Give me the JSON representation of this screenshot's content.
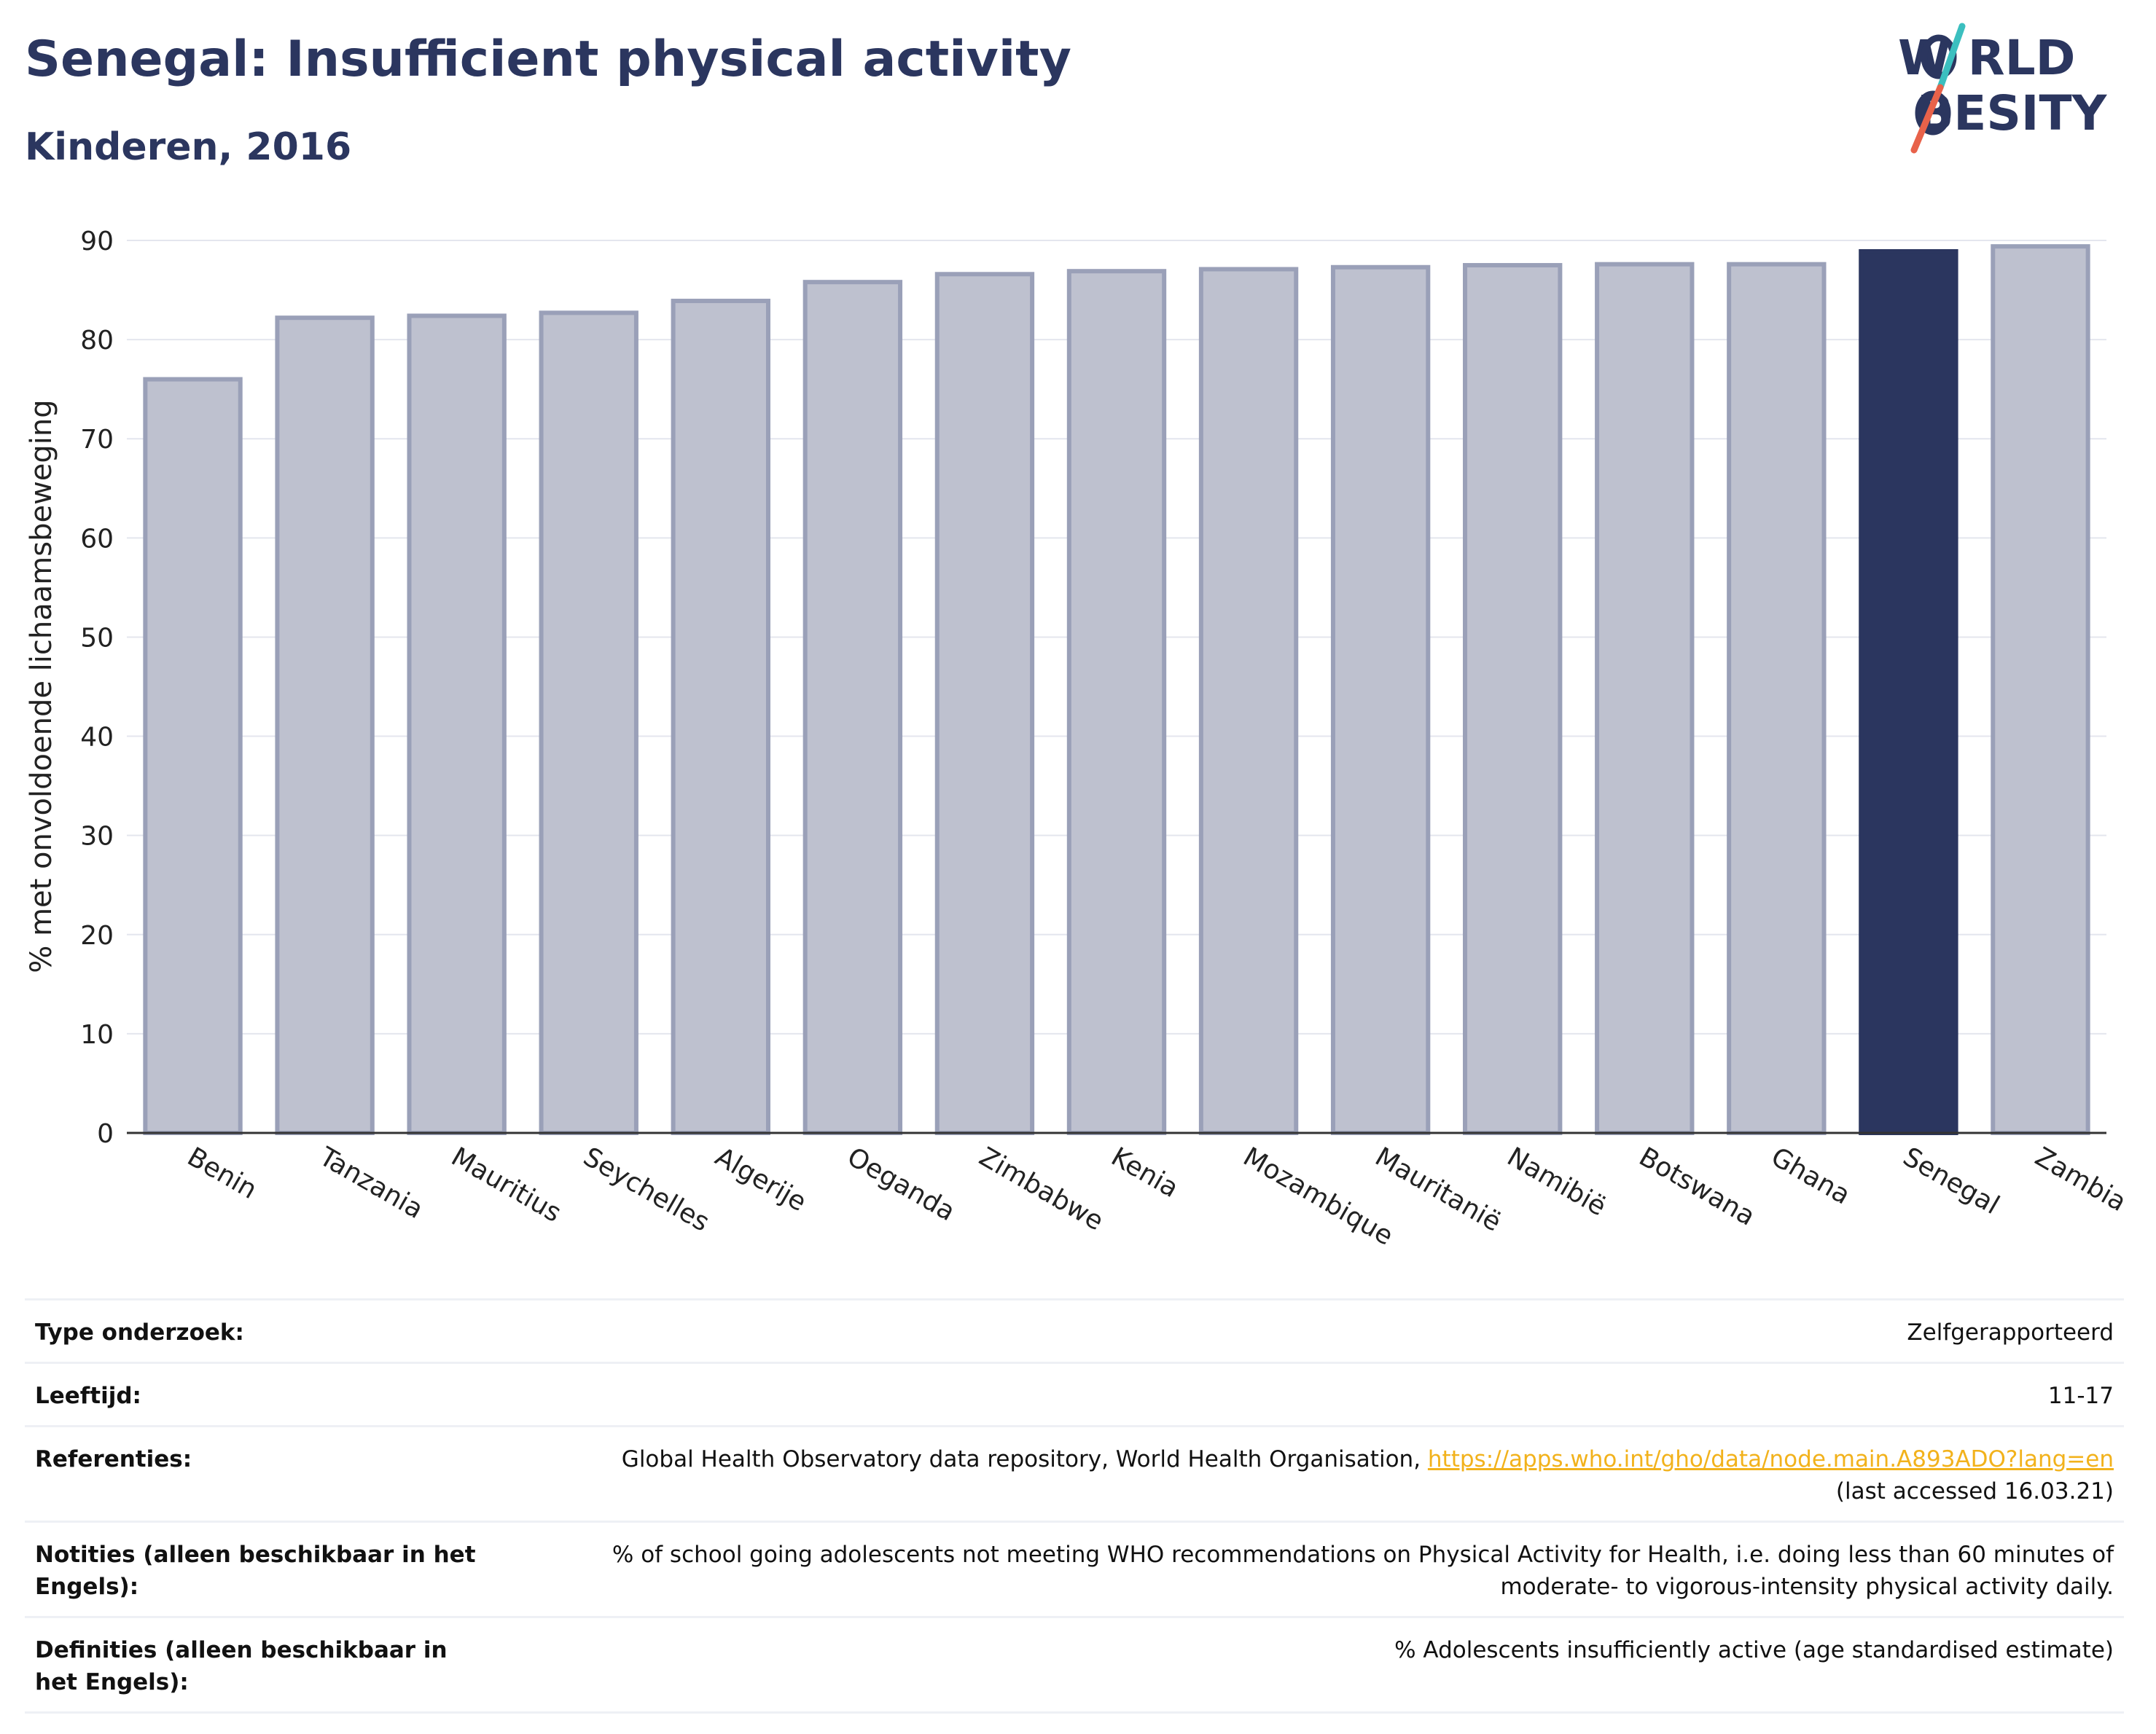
{
  "header": {
    "title": "Senegal: Insufficient physical activity",
    "subtitle": "Kinderen, 2016"
  },
  "logo": {
    "line1": "W RLD",
    "line2": "BESITY",
    "colors": {
      "text": "#2b365f",
      "slash_top": "#3bbfbf",
      "slash_bottom": "#e8624a"
    }
  },
  "colors": {
    "bar_fill": "#bec1cf",
    "bar_stroke": "#9aa0b8",
    "highlight": "#2b365f",
    "grid": "#e4e6ee",
    "axis": "#333333"
  },
  "chart_data": {
    "type": "bar",
    "title": "Senegal: Insufficient physical activity",
    "subtitle": "Kinderen, 2016",
    "xlabel": "",
    "ylabel": "% met onvoldoende lichaamsbeweging",
    "ylim": [
      0,
      90
    ],
    "yticks": [
      0,
      10,
      20,
      30,
      40,
      50,
      60,
      70,
      80,
      90
    ],
    "grid": true,
    "highlight": "Senegal",
    "categories": [
      "Benin",
      "Tanzania",
      "Mauritius",
      "Seychelles",
      "Algerije",
      "Oeganda",
      "Zimbabwe",
      "Kenia",
      "Mozambique",
      "Mauritanië",
      "Namibië",
      "Botswana",
      "Ghana",
      "Senegal",
      "Zambia"
    ],
    "values": [
      76.0,
      82.2,
      82.4,
      82.7,
      83.9,
      85.8,
      86.6,
      86.9,
      87.1,
      87.3,
      87.5,
      87.6,
      87.6,
      88.9,
      89.4
    ]
  },
  "info": [
    {
      "key": "Type onderzoek:",
      "value": "Zelfgerapporteerd"
    },
    {
      "key": "Leeftijd:",
      "value": "11-17"
    },
    {
      "key": "Referenties:",
      "value": "Global Health Observatory data repository, World Health Organisation, ",
      "link": "https://apps.who.int/gho/data/node.main.A893ADO?lang=en",
      "suffix": "(last accessed 16.03.21)"
    },
    {
      "key": "Notities (alleen beschikbaar in het Engels):",
      "value": "% of school going adolescents not meeting WHO recommendations on Physical Activity for Health, i.e. doing less than 60 minutes of moderate- to vigorous-intensity physical activity daily."
    },
    {
      "key": "Definities (alleen beschikbaar in het Engels):",
      "value": "% Adolescents insufficiently active (age standardised estimate)"
    }
  ]
}
